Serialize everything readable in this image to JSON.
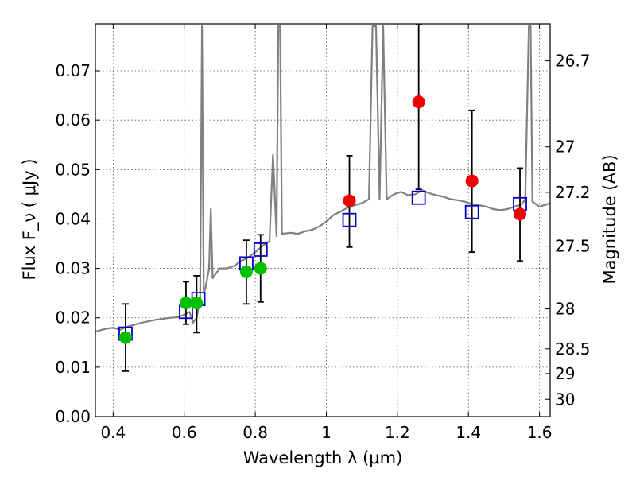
{
  "chart_data": {
    "type": "scatter",
    "xlabel": "Wavelength  λ (μm)",
    "ylabel": "Flux  F_ν  ( μJy )",
    "y2label": "Magnitude (AB)",
    "xlim": [
      0.35,
      1.63
    ],
    "ylim": [
      0.0,
      0.0795
    ],
    "grid": true,
    "x_ticks": [
      0.4,
      0.6,
      0.8,
      1.0,
      1.2,
      1.4,
      1.6
    ],
    "x_tick_labels": [
      "0.4",
      "0.6",
      "0.8",
      "1",
      "1.2",
      "1.4",
      "1.6"
    ],
    "y_ticks": [
      0.0,
      0.01,
      0.02,
      0.03,
      0.04,
      0.05,
      0.06,
      0.07
    ],
    "y_tick_labels": [
      "0.00",
      "0.01",
      "0.02",
      "0.03",
      "0.04",
      "0.05",
      "0.06",
      "0.07"
    ],
    "y2_ticks": [
      {
        "label": "26.7",
        "flux": 0.072
      },
      {
        "label": "27",
        "flux": 0.0546
      },
      {
        "label": "27.2",
        "flux": 0.0454
      },
      {
        "label": "27.5",
        "flux": 0.0345
      },
      {
        "label": "28",
        "flux": 0.0218
      },
      {
        "label": "28.5",
        "flux": 0.0137
      },
      {
        "label": "29",
        "flux": 0.0087
      },
      {
        "label": "30",
        "flux": 0.0035
      }
    ],
    "colors": {
      "spectrum": "#808080",
      "model_box": "#0000cc",
      "green_points": "#00c000",
      "red_points": "#ee0000",
      "error_bar": "#000000",
      "grid": "#555555"
    },
    "series": [
      {
        "style": "line",
        "points": [
          [
            0.35,
            0.0172
          ],
          [
            0.38,
            0.0178
          ],
          [
            0.4,
            0.018
          ],
          [
            0.42,
            0.0176
          ],
          [
            0.44,
            0.0182
          ],
          [
            0.46,
            0.0186
          ],
          [
            0.48,
            0.019
          ],
          [
            0.5,
            0.0193
          ],
          [
            0.52,
            0.0196
          ],
          [
            0.54,
            0.0198
          ],
          [
            0.56,
            0.02
          ],
          [
            0.58,
            0.0201
          ],
          [
            0.6,
            0.0206
          ],
          [
            0.615,
            0.0212
          ],
          [
            0.625,
            0.019
          ],
          [
            0.635,
            0.02
          ],
          [
            0.645,
            0.024
          ],
          [
            0.65,
            0.079
          ],
          [
            0.655,
            0.025
          ],
          [
            0.66,
            0.026
          ],
          [
            0.67,
            0.03
          ],
          [
            0.675,
            0.042
          ],
          [
            0.68,
            0.028
          ],
          [
            0.69,
            0.029
          ],
          [
            0.7,
            0.03
          ],
          [
            0.72,
            0.03
          ],
          [
            0.74,
            0.0305
          ],
          [
            0.76,
            0.0315
          ],
          [
            0.78,
            0.0322
          ],
          [
            0.8,
            0.0333
          ],
          [
            0.82,
            0.0345
          ],
          [
            0.84,
            0.0355
          ],
          [
            0.85,
            0.053
          ],
          [
            0.86,
            0.0365
          ],
          [
            0.865,
            0.079
          ],
          [
            0.87,
            0.079
          ],
          [
            0.875,
            0.037
          ],
          [
            0.9,
            0.0372
          ],
          [
            0.92,
            0.037
          ],
          [
            0.94,
            0.0375
          ],
          [
            0.96,
            0.0378
          ],
          [
            0.98,
            0.0385
          ],
          [
            1.0,
            0.0395
          ],
          [
            1.02,
            0.0408
          ],
          [
            1.04,
            0.0415
          ],
          [
            1.06,
            0.0423
          ],
          [
            1.08,
            0.0428
          ],
          [
            1.1,
            0.0432
          ],
          [
            1.12,
            0.044
          ],
          [
            1.13,
            0.079
          ],
          [
            1.14,
            0.079
          ],
          [
            1.15,
            0.044
          ],
          [
            1.16,
            0.079
          ],
          [
            1.17,
            0.044
          ],
          [
            1.19,
            0.045
          ],
          [
            1.21,
            0.0455
          ],
          [
            1.23,
            0.0448
          ],
          [
            1.25,
            0.045
          ],
          [
            1.27,
            0.0458
          ],
          [
            1.29,
            0.0452
          ],
          [
            1.31,
            0.0448
          ],
          [
            1.33,
            0.0445
          ],
          [
            1.35,
            0.044
          ],
          [
            1.37,
            0.0438
          ],
          [
            1.39,
            0.0435
          ],
          [
            1.41,
            0.043
          ],
          [
            1.43,
            0.0428
          ],
          [
            1.45,
            0.0425
          ],
          [
            1.47,
            0.042
          ],
          [
            1.49,
            0.0418
          ],
          [
            1.51,
            0.042
          ],
          [
            1.53,
            0.0425
          ],
          [
            1.55,
            0.043
          ],
          [
            1.56,
            0.044
          ],
          [
            1.57,
            0.079
          ],
          [
            1.575,
            0.079
          ],
          [
            1.58,
            0.0435
          ],
          [
            1.6,
            0.0425
          ],
          [
            1.63,
            0.0432
          ]
        ]
      },
      {
        "style": "boxes",
        "points": [
          {
            "x": 0.435,
            "y": 0.0168
          },
          {
            "x": 0.605,
            "y": 0.0212
          },
          {
            "x": 0.64,
            "y": 0.0238
          },
          {
            "x": 0.775,
            "y": 0.031
          },
          {
            "x": 0.815,
            "y": 0.0338
          },
          {
            "x": 1.065,
            "y": 0.0398
          },
          {
            "x": 1.26,
            "y": 0.0443
          },
          {
            "x": 1.41,
            "y": 0.0414
          },
          {
            "x": 1.545,
            "y": 0.043
          }
        ]
      },
      {
        "style": "points-green",
        "points": [
          {
            "x": 0.435,
            "y": 0.016,
            "err": [
              0.0092,
              0.0228
            ]
          },
          {
            "x": 0.605,
            "y": 0.023,
            "err": [
              0.0187,
              0.0273
            ]
          },
          {
            "x": 0.635,
            "y": 0.023,
            "err": [
              0.017,
              0.0285
            ]
          },
          {
            "x": 0.775,
            "y": 0.0293,
            "err": [
              0.0228,
              0.0357
            ]
          },
          {
            "x": 0.815,
            "y": 0.03,
            "err": [
              0.0232,
              0.0368
            ]
          }
        ]
      },
      {
        "style": "points-red",
        "points": [
          {
            "x": 1.065,
            "y": 0.0437,
            "err": [
              0.0343,
              0.0528
            ]
          },
          {
            "x": 1.26,
            "y": 0.0637,
            "err": [
              0.046,
              0.0795
            ]
          },
          {
            "x": 1.41,
            "y": 0.0477,
            "err": [
              0.0333,
              0.062
            ]
          },
          {
            "x": 1.545,
            "y": 0.041,
            "err": [
              0.0315,
              0.0503
            ]
          }
        ]
      }
    ]
  }
}
